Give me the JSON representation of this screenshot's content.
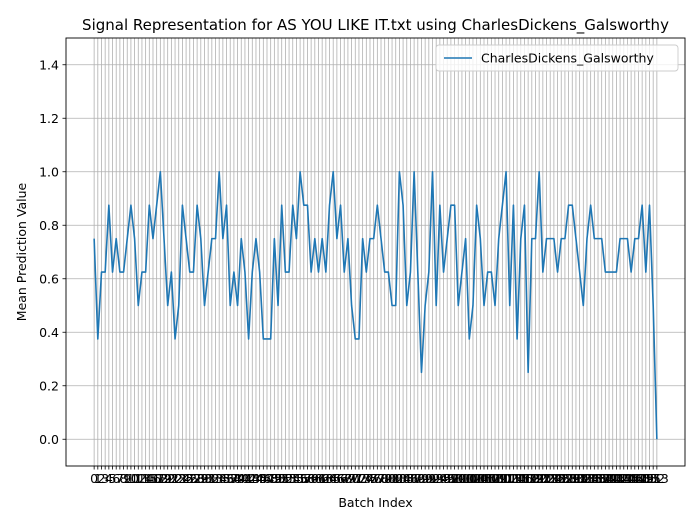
{
  "chart_data": {
    "type": "line",
    "title": "Signal Representation for AS YOU LIKE IT.txt using CharlesDickens_Galsworthy",
    "xlabel": "Batch Index",
    "ylabel": "Mean Prediction Value",
    "ylim": [
      -0.1,
      1.5
    ],
    "yticks": [
      0.0,
      0.2,
      0.4,
      0.6,
      0.8,
      1.0,
      1.2,
      1.4
    ],
    "grid": true,
    "legend_placement": "upper-right",
    "colors": {
      "series": "#1f77b4",
      "grid": "#b0b0b0"
    },
    "series": [
      {
        "name": "CharlesDickens_Galsworthy",
        "values": [
          0.75,
          0.375,
          0.625,
          0.625,
          0.875,
          0.625,
          0.75,
          0.625,
          0.625,
          0.75,
          0.875,
          0.75,
          0.5,
          0.625,
          0.625,
          0.875,
          0.75,
          0.875,
          1.0,
          0.75,
          0.5,
          0.625,
          0.375,
          0.5,
          0.875,
          0.75,
          0.625,
          0.625,
          0.875,
          0.75,
          0.5,
          0.625,
          0.75,
          0.75,
          1.0,
          0.75,
          0.875,
          0.5,
          0.625,
          0.5,
          0.75,
          0.625,
          0.375,
          0.625,
          0.75,
          0.625,
          0.375,
          0.375,
          0.375,
          0.75,
          0.5,
          0.875,
          0.625,
          0.625,
          0.875,
          0.75,
          1.0,
          0.875,
          0.875,
          0.625,
          0.75,
          0.625,
          0.75,
          0.625,
          0.875,
          1.0,
          0.75,
          0.875,
          0.625,
          0.75,
          0.5,
          0.375,
          0.375,
          0.75,
          0.625,
          0.75,
          0.75,
          0.875,
          0.75,
          0.625,
          0.625,
          0.5,
          0.5,
          1.0,
          0.875,
          0.5,
          0.625,
          1.0,
          0.625,
          0.25,
          0.5,
          0.625,
          1.0,
          0.5,
          0.875,
          0.625,
          0.75,
          0.875,
          0.875,
          0.5,
          0.625,
          0.75,
          0.375,
          0.5,
          0.875,
          0.75,
          0.5,
          0.625,
          0.625,
          0.5,
          0.75,
          0.875,
          1.0,
          0.5,
          0.875,
          0.375,
          0.75,
          0.875,
          0.25,
          0.75,
          0.75,
          1.0,
          0.625,
          0.75,
          0.75,
          0.75,
          0.625,
          0.75,
          0.75,
          0.875,
          0.875,
          0.75,
          0.625,
          0.5,
          0.75,
          0.875,
          0.75,
          0.75,
          0.75,
          0.625,
          0.625,
          0.625,
          0.625,
          0.75,
          0.75,
          0.75,
          0.625,
          0.75,
          0.75,
          0.875,
          0.625,
          0.875,
          0.5,
          0.0
        ]
      }
    ]
  }
}
